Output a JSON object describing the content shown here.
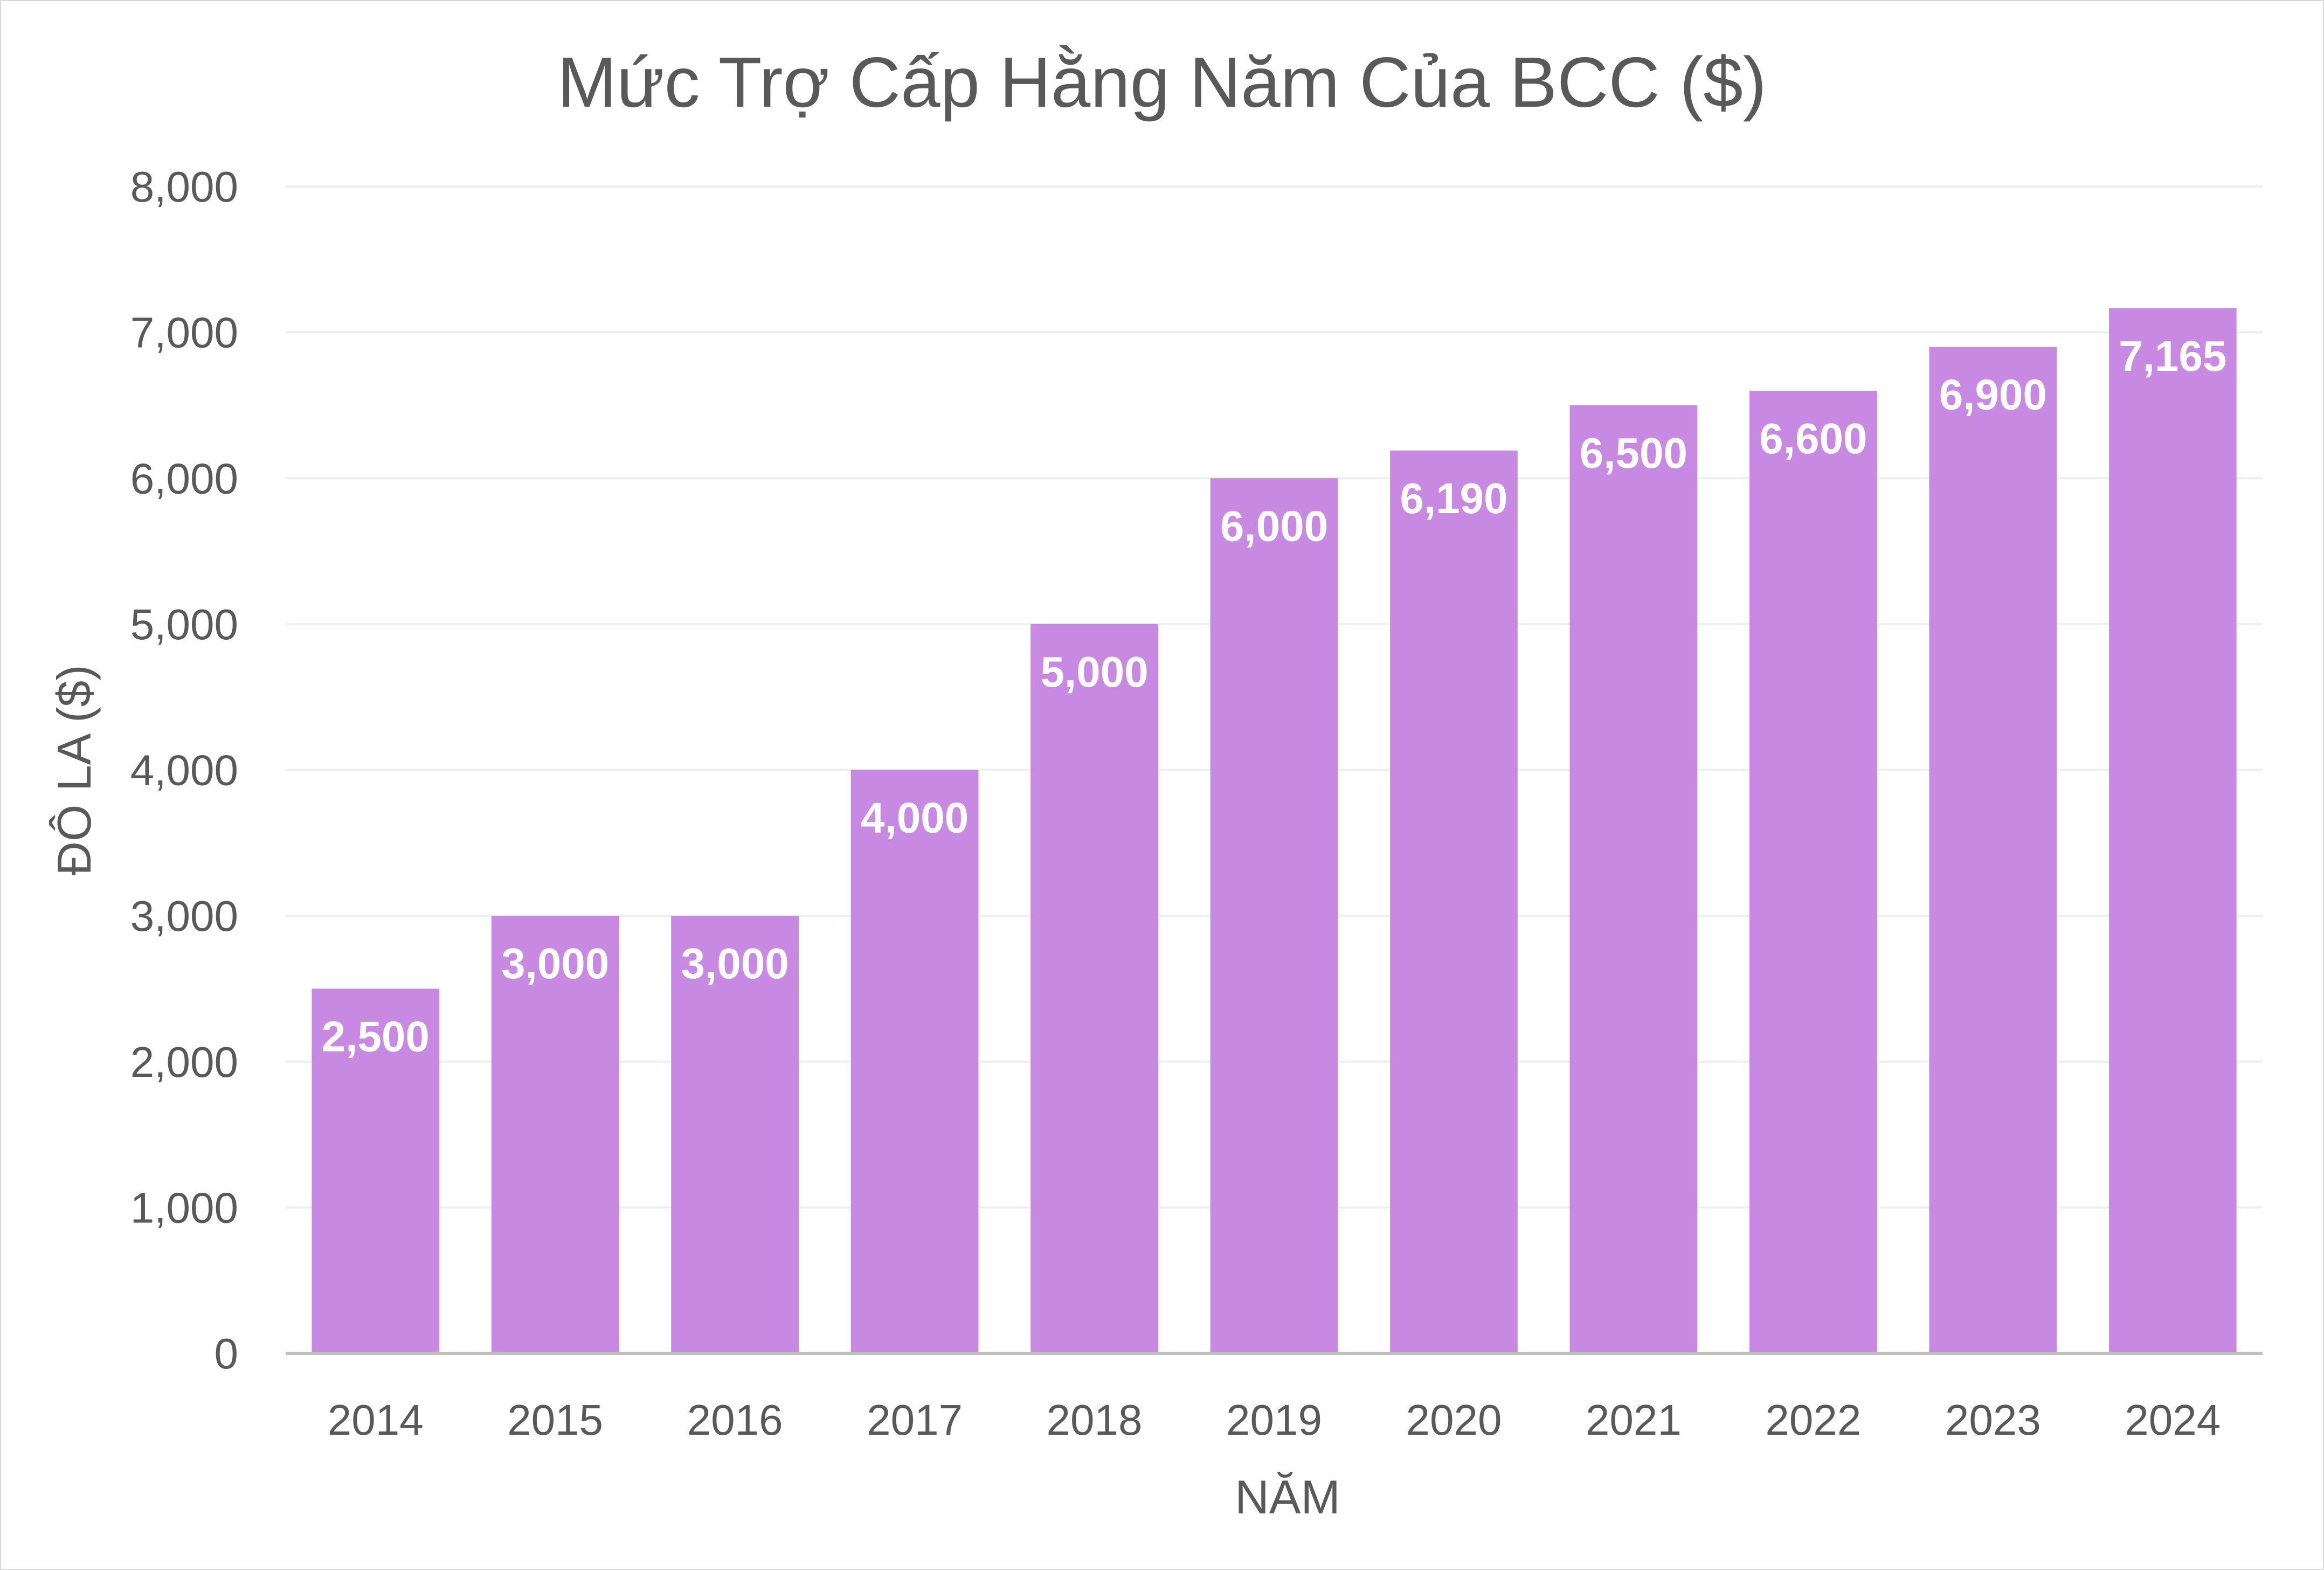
{
  "chart_data": {
    "type": "bar",
    "title": "Mức Trợ Cấp Hằng Năm Của BCC ($)",
    "xlabel": "NĂM",
    "ylabel": "ĐÔ LA ($)",
    "categories": [
      "2014",
      "2015",
      "2016",
      "2017",
      "2018",
      "2019",
      "2020",
      "2021",
      "2022",
      "2023",
      "2024"
    ],
    "values": [
      2500,
      3000,
      3000,
      4000,
      5000,
      6000,
      6190,
      6500,
      6600,
      6900,
      7165
    ],
    "data_labels": [
      "2,500",
      "3,000",
      "3,000",
      "4,000",
      "5,000",
      "6,000",
      "6,190",
      "6,500",
      "6,600",
      "6,900",
      "7,165"
    ],
    "ylim": [
      0,
      8000
    ],
    "y_ticks": [
      0,
      1000,
      2000,
      3000,
      4000,
      5000,
      6000,
      7000,
      8000
    ],
    "y_tick_labels": [
      "0",
      "1,000",
      "2,000",
      "3,000",
      "4,000",
      "5,000",
      "6,000",
      "7,000",
      "8,000"
    ],
    "grid": true,
    "legend": false,
    "colors": {
      "bar": "#c889e3",
      "grid": "#eeeeee",
      "axis": "#bfbfbf",
      "text": "#595959",
      "bar_label": "#ffffff"
    }
  }
}
